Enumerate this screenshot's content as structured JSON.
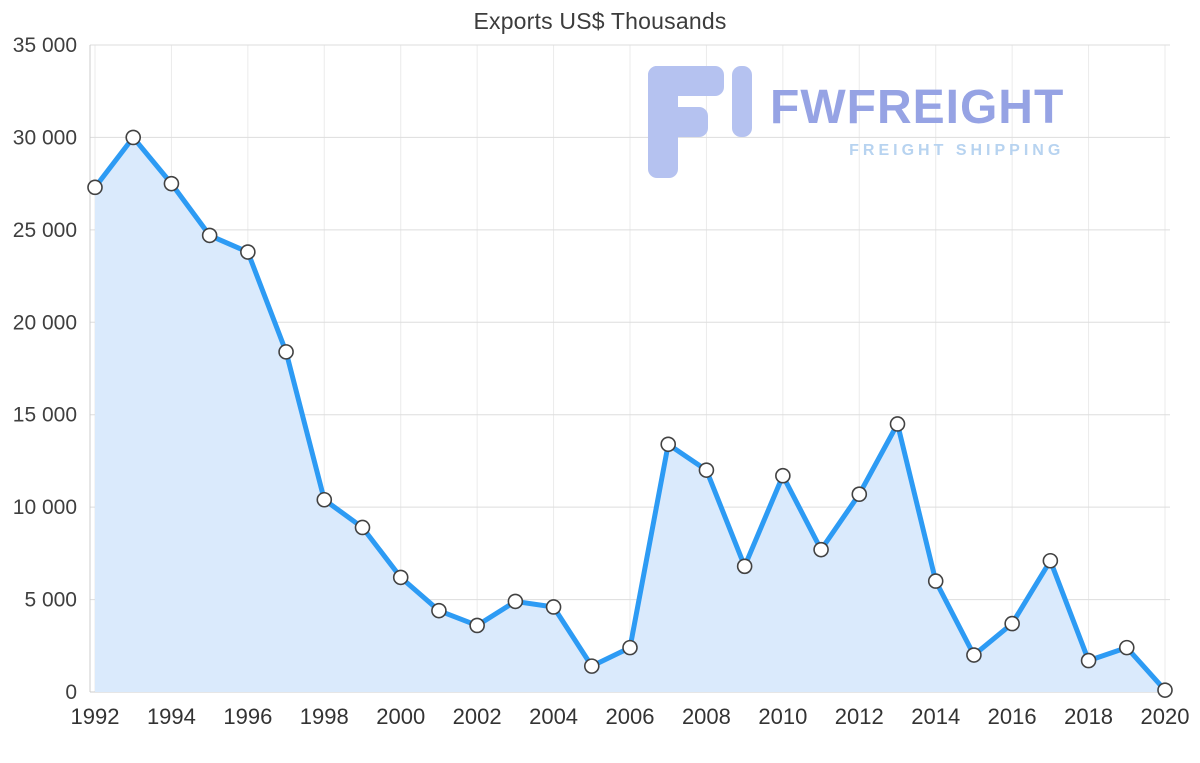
{
  "watermark": {
    "brand": "FWFREIGHT",
    "tagline": "FREIGHT SHIPPING",
    "logo_color": "#b5c2f0",
    "brand_color": "#96a3e4",
    "tagline_color": "#b7d3f0"
  },
  "chart_data": {
    "type": "area",
    "title": "Exports US$ Thousands",
    "xlabel": "",
    "ylabel": "",
    "legend": "none",
    "grid": true,
    "categories": [
      1992,
      1993,
      1994,
      1995,
      1996,
      1997,
      1998,
      1999,
      2000,
      2001,
      2002,
      2003,
      2004,
      2005,
      2006,
      2007,
      2008,
      2009,
      2010,
      2011,
      2012,
      2013,
      2014,
      2015,
      2016,
      2017,
      2018,
      2019,
      2020
    ],
    "values": [
      27300,
      30000,
      27500,
      24700,
      23800,
      18400,
      10400,
      8900,
      6200,
      4400,
      3600,
      4900,
      4600,
      1400,
      2400,
      13400,
      12000,
      6800,
      11700,
      7700,
      10700,
      14500,
      6000,
      2000,
      3700,
      7100,
      1700,
      2400,
      100
    ],
    "ylim": [
      0,
      35000
    ],
    "y_ticks": {
      "values": [
        0,
        5000,
        10000,
        15000,
        20000,
        25000,
        30000,
        35000
      ],
      "labels": [
        "0",
        "5 000",
        "10 000",
        "15 000",
        "20 000",
        "25 000",
        "30 000",
        "35 000"
      ]
    },
    "x_ticks": {
      "values": [
        1992,
        1994,
        1996,
        1998,
        2000,
        2002,
        2004,
        2006,
        2008,
        2010,
        2012,
        2014,
        2016,
        2018,
        2020
      ],
      "labels": [
        "1992",
        "1994",
        "1996",
        "1998",
        "2000",
        "2002",
        "2004",
        "2006",
        "2008",
        "2010",
        "2012",
        "2014",
        "2016",
        "2018",
        "2020"
      ]
    },
    "line_color": "#2d9bf4",
    "fill_color": "#daeafc",
    "marker_fill": "#ffffff",
    "marker_stroke": "#424242"
  }
}
